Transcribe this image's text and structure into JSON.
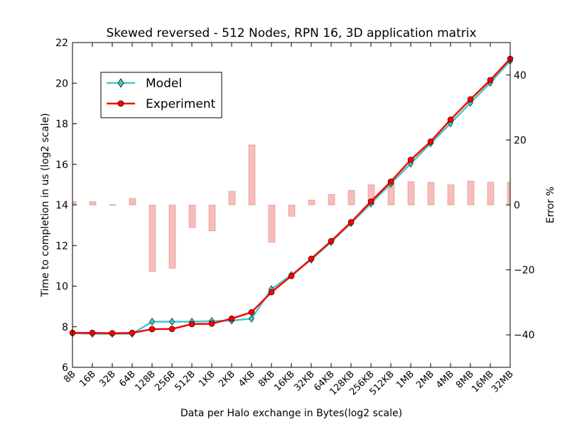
{
  "chart_data": {
    "type": "line",
    "title": "Skewed reversed - 512 Nodes, RPN 16, 3D application matrix",
    "xlabel": "Data per Halo exchange in Bytes(log2 scale)",
    "ylabel": "Time to completion in us (log2 scale)",
    "y2label": "Error %",
    "categories": [
      "8B",
      "16B",
      "32B",
      "64B",
      "128B",
      "256B",
      "512B",
      "1KB",
      "2KB",
      "4KB",
      "8KB",
      "16KB",
      "32KB",
      "64KB",
      "128KB",
      "256KB",
      "512KB",
      "1MB",
      "2MB",
      "4MB",
      "8MB",
      "16MB",
      "32MB"
    ],
    "ylim": [
      6,
      22
    ],
    "yticks": [
      "6",
      "8",
      "10",
      "12",
      "14",
      "16",
      "18",
      "20",
      "22"
    ],
    "y2lim": [
      -50,
      50
    ],
    "y2ticks": [
      "−40",
      "−20",
      "0",
      "20",
      "40"
    ],
    "legend_position": "upper-left",
    "series": [
      {
        "name": "Model",
        "color": "#40c8c8",
        "marker": "diamond",
        "values": [
          7.68,
          7.65,
          7.65,
          7.65,
          8.25,
          8.25,
          8.25,
          8.28,
          8.3,
          8.4,
          9.85,
          10.55,
          11.3,
          12.17,
          13.1,
          14.07,
          15.05,
          16.04,
          17.03,
          18.02,
          19.03,
          20.02,
          21.1
        ]
      },
      {
        "name": "Experiment",
        "color": "#ff0000",
        "marker": "circle",
        "values": [
          7.7,
          7.7,
          7.68,
          7.7,
          7.88,
          7.89,
          8.13,
          8.15,
          8.4,
          8.72,
          9.7,
          10.5,
          11.35,
          12.22,
          13.15,
          14.17,
          15.15,
          16.22,
          17.12,
          18.2,
          19.2,
          20.15,
          21.2
        ]
      },
      {
        "name": "Error %",
        "type": "bar",
        "axis": "right",
        "color": "#f4a7a3",
        "values": [
          1,
          1,
          0,
          2,
          -20.5,
          -19.5,
          -7,
          -8,
          4.2,
          18.5,
          -11.5,
          -3.5,
          1.5,
          3.2,
          4.5,
          6.2,
          7,
          7.2,
          7,
          6.2,
          7.4,
          7,
          7
        ]
      }
    ]
  }
}
